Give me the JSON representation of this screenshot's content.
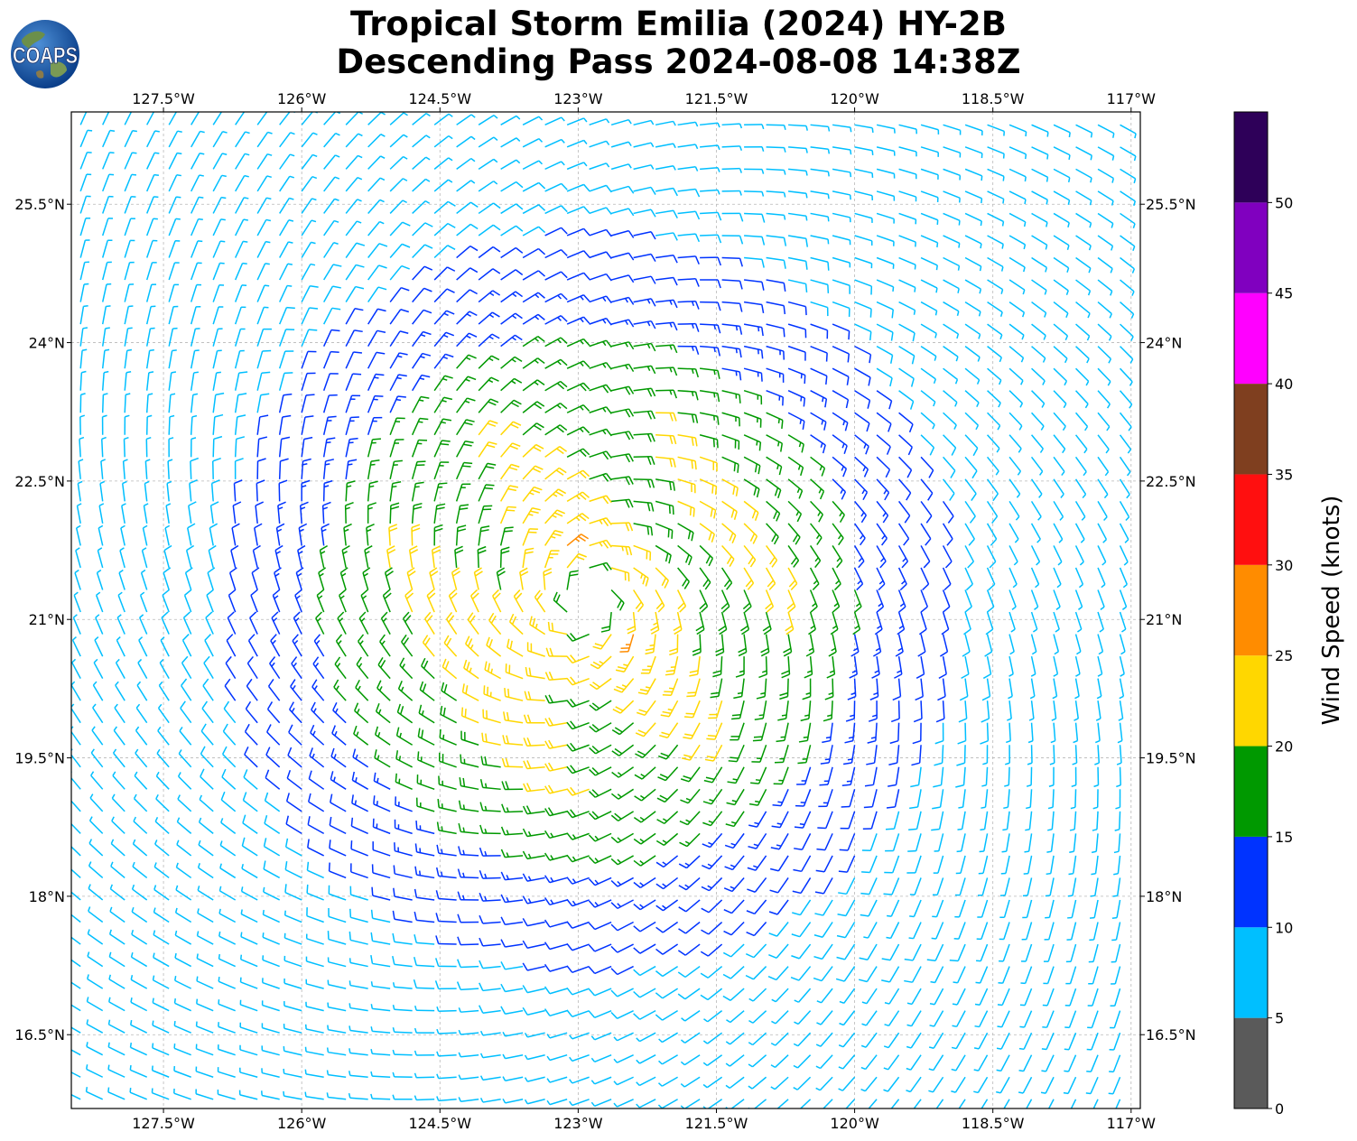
{
  "chart_data": {
    "type": "wind-barb-map",
    "title": "Tropical Storm Emilia (2024) HY-2B",
    "subtitle": "Descending Pass 2024-08-08 14:38Z",
    "logo_text": "COAPS",
    "x_axis": {
      "lon_range": [
        -128.5,
        -116.9
      ],
      "ticks": [
        -127.5,
        -126,
        -124.5,
        -123,
        -121.5,
        -120,
        -118.5,
        -117
      ],
      "tick_labels": [
        "127.5°W",
        "126°W",
        "124.5°W",
        "123°W",
        "121.5°W",
        "120°W",
        "118.5°W",
        "117°W"
      ]
    },
    "y_axis": {
      "lat_range": [
        15.7,
        26.5
      ],
      "ticks": [
        25.5,
        24,
        22.5,
        21,
        19.5,
        18,
        16.5
      ],
      "tick_labels": [
        "25.5°N",
        "24°N",
        "22.5°N",
        "21°N",
        "19.5°N",
        "18°N",
        "16.5°N"
      ]
    },
    "grid": true,
    "storm_center": {
      "lon": -122.9,
      "lat": 21.2
    },
    "colorbar": {
      "label": "Wind Speed (knots)",
      "range": [
        0,
        55
      ],
      "ticks": [
        0,
        5,
        10,
        15,
        20,
        25,
        30,
        35,
        40,
        45,
        50
      ],
      "bins": [
        {
          "min": 0,
          "max": 5,
          "color": "#5a5a5a"
        },
        {
          "min": 5,
          "max": 10,
          "color": "#00bfff"
        },
        {
          "min": 10,
          "max": 15,
          "color": "#0033ff"
        },
        {
          "min": 15,
          "max": 20,
          "color": "#009900"
        },
        {
          "min": 20,
          "max": 25,
          "color": "#ffd700"
        },
        {
          "min": 25,
          "max": 30,
          "color": "#ff8c00"
        },
        {
          "min": 30,
          "max": 35,
          "color": "#ff0f0f"
        },
        {
          "min": 35,
          "max": 40,
          "color": "#7f3f1f"
        },
        {
          "min": 40,
          "max": 45,
          "color": "#ff00ff"
        },
        {
          "min": 45,
          "max": 50,
          "color": "#8000bf"
        },
        {
          "min": 50,
          "max": 55,
          "color": "#2e0059"
        }
      ]
    },
    "barb_grid": {
      "lon_step": 0.24,
      "lat_step": 0.24
    }
  }
}
